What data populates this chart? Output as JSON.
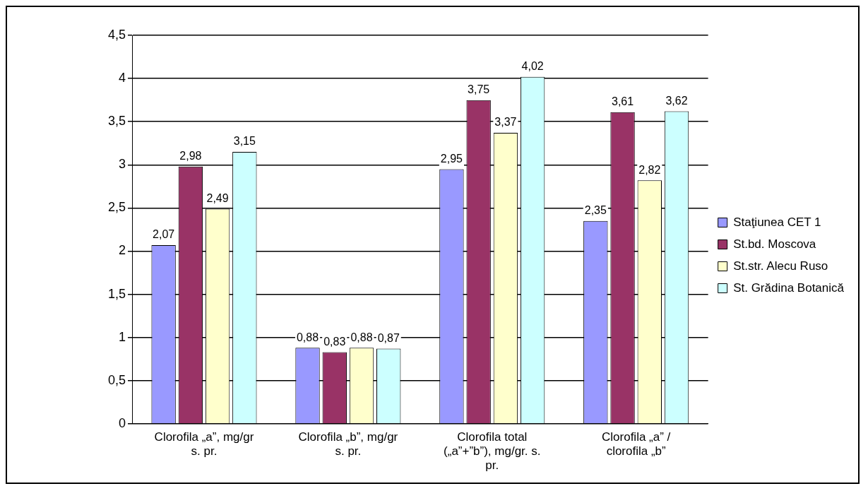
{
  "chart_data": {
    "type": "bar",
    "categories": [
      "Clorofila „a”, mg/gr s. pr.",
      "Clorofila „b”, mg/gr s. pr.",
      "Clorofila total („a”+”b”), mg/gr. s. pr.",
      "Clorofila „a” / clorofila „b”"
    ],
    "series": [
      {
        "name": "Staţiunea CET 1",
        "color": "#9999ff",
        "values": [
          2.07,
          0.88,
          2.95,
          2.35
        ],
        "value_labels": [
          "2,07",
          "0,88",
          "2,95",
          "2,35"
        ]
      },
      {
        "name": "St.bd. Moscova",
        "color": "#993366",
        "values": [
          2.98,
          0.83,
          3.75,
          3.61
        ],
        "value_labels": [
          "2,98",
          "0,83",
          "3,75",
          "3,61"
        ]
      },
      {
        "name": "St.str. Alecu Ruso",
        "color": "#ffffcc",
        "values": [
          2.49,
          0.88,
          3.37,
          2.82
        ],
        "value_labels": [
          "2,49",
          "0,88",
          "3,37",
          "2,82"
        ]
      },
      {
        "name": "St. Grădina Botanică",
        "color": "#ccffff",
        "values": [
          3.15,
          0.87,
          4.02,
          3.62
        ],
        "value_labels": [
          "3,15",
          "0,87",
          "4,02",
          "3,62"
        ]
      }
    ],
    "ylim": [
      0,
      4.5
    ],
    "yticks": [
      0,
      {
        "value": 0.5,
        "label": "0,5"
      },
      1,
      {
        "value": 1.5,
        "label": "1,5"
      },
      2,
      {
        "value": 2.5,
        "label": "2,5"
      },
      3,
      {
        "value": 3.5,
        "label": "3,5"
      },
      4,
      {
        "value": 4.5,
        "label": "4,5"
      }
    ],
    "grid": "y",
    "legend": "right"
  }
}
